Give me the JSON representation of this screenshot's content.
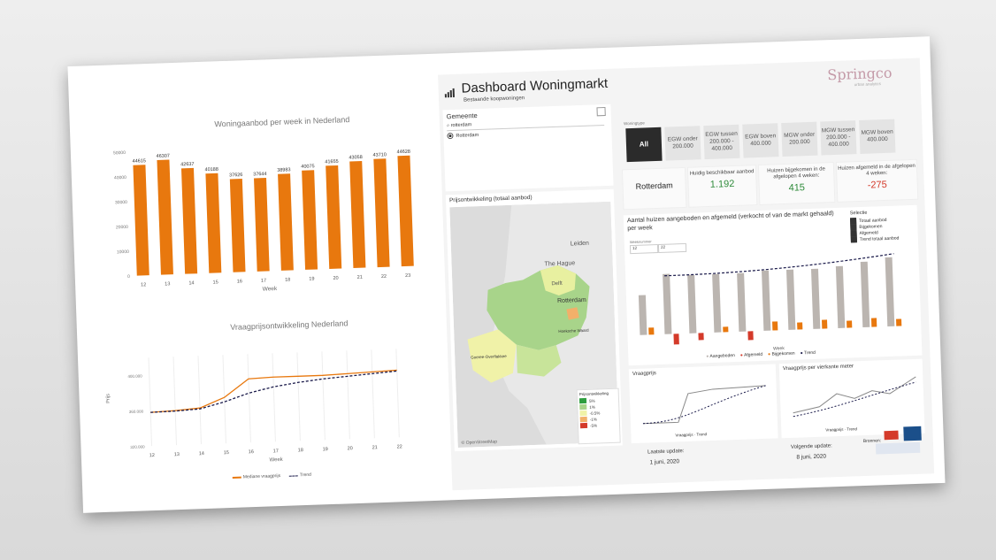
{
  "left": {
    "chart1_title": "Woningaanbod per week in Nederland",
    "chart2_title": "Vraagprijsontwikkeling Nederland",
    "chart2_legend": {
      "mediaan": "Mediane vraagprijs",
      "trend": "Trend"
    }
  },
  "dashboard": {
    "title": "Dashboard Woningmarkt",
    "subtitle": "Bestaande koopwoningen",
    "logo": "Springco",
    "logo_sub": "urban analytics",
    "gemeente_label": "Gemeente",
    "search_value": "rotterdam",
    "radio_option": "Rotterdam",
    "map_title": "Prijsontwikkeling (totaal aanbod)",
    "map_labels": [
      "Leiden",
      "The Hague",
      "Delft",
      "Rotterdam",
      "Goeree-Overflakkee",
      "Hoeksche Waard"
    ],
    "map_legend_title": "Prijsontwikkeling",
    "map_legend_items": [
      "5%",
      "1%",
      "-0.5%",
      "-1%",
      "-5%"
    ],
    "map_credit": "© OpenStreetMap",
    "woningtype_label": "Woningtype",
    "tiles": [
      {
        "label": "All"
      },
      {
        "label": "EGW onder 200.000"
      },
      {
        "label": "EGW tussen 200.000 - 400.000"
      },
      {
        "label": "EGW boven 400.000"
      },
      {
        "label": "MGW onder 200.000"
      },
      {
        "label": "MGW tussen 200.000 - 400.000"
      },
      {
        "label": "MGW boven 400.000"
      }
    ],
    "kpis": [
      {
        "label": "",
        "value": "Rotterdam"
      },
      {
        "label": "Huidig beschikbaar aanbod",
        "value": "1.192"
      },
      {
        "label": "Huizen bijgekomen in de afgelopen 4 weken:",
        "value": "415"
      },
      {
        "label": "Huizen afgemeld in de afgelopen 4 weken:",
        "value": "-275"
      }
    ],
    "trend_chart_title": "Aantal huizen aangeboden en afgemeld (verkocht of van de markt gehaald) per week",
    "weeknummer_label": "Weeknummer",
    "week_from": "12",
    "week_to": "22",
    "selectie_label": "Selectie",
    "selectie_items": [
      "Totaal aanbod",
      "Bijgekomen",
      "Afgemeld",
      "Trend totaal aanbod"
    ],
    "trend_legend": [
      "Aangeboden",
      "Afgemeld",
      "Bijgekomen",
      "Trend"
    ],
    "week_axis": "Week",
    "vraagprijs_title": "Vraagprijs",
    "vraagprijs_m2_title": "Vraagprijs per vierkante meter",
    "small_legend": [
      "Vraagprijs",
      "Trend"
    ],
    "laatste_update_label": "Laatste update:",
    "laatste_update": "1 juni, 2020",
    "volgende_update_label": "Volgende update:",
    "volgende_update": "8 juni, 2020",
    "bronnen_label": "Bronnen:"
  },
  "chart_data": [
    {
      "type": "bar",
      "title": "Woningaanbod per week in Nederland",
      "xlabel": "Week",
      "categories": [
        "12",
        "13",
        "14",
        "15",
        "16",
        "17",
        "18",
        "19",
        "20",
        "21",
        "22",
        "23"
      ],
      "values": [
        44615,
        46307,
        42637,
        40188,
        37626,
        37644,
        38983,
        40075,
        41655,
        43058,
        43710,
        44628
      ],
      "ylim": [
        0,
        50000
      ],
      "yticks": [
        0,
        10000,
        20000,
        30000,
        40000,
        50000
      ],
      "color": "#e8780e"
    },
    {
      "type": "line",
      "title": "Vraagprijsontwikkeling Nederland",
      "xlabel": "Week",
      "ylabel": "Prijs",
      "x": [
        "12",
        "13",
        "14",
        "15",
        "16",
        "17",
        "18",
        "19",
        "20",
        "21",
        "22"
      ],
      "series": [
        {
          "name": "Mediane vraagprijs",
          "values": [
            358000,
            359000,
            361000,
            372000,
            392000,
            393000,
            393000,
            393000,
            394000,
            395000,
            396000
          ],
          "color": "#e8780e"
        },
        {
          "name": "Trend",
          "values": [
            358000,
            358500,
            360000,
            367000,
            376000,
            382000,
            386000,
            389000,
            391000,
            393000,
            395000
          ],
          "color": "#1a1a4a"
        }
      ],
      "ylim": [
        320000,
        420000
      ],
      "yticks": [
        "320.000",
        "360.000",
        "400.000"
      ]
    }
  ]
}
